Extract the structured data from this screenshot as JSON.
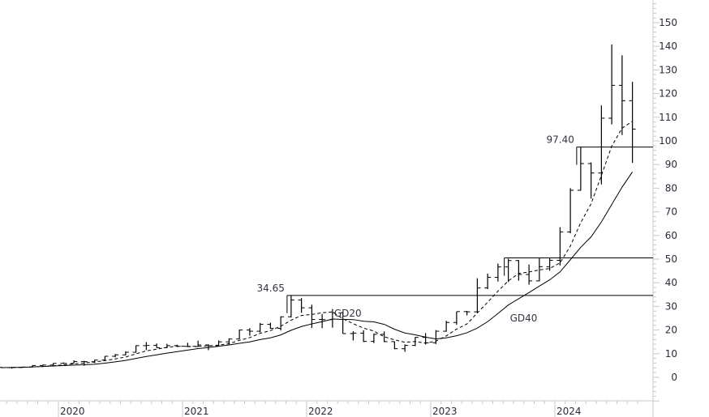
{
  "chart_data": {
    "type": "ohlc",
    "title": "",
    "xlabel": "",
    "ylabel": "",
    "ylim": [
      -10,
      155
    ],
    "grid": false,
    "x_ticks": [
      "2020",
      "2021",
      "2022",
      "2023",
      "2024"
    ],
    "y_ticks": [
      0,
      10,
      20,
      30,
      40,
      50,
      60,
      70,
      80,
      90,
      100,
      110,
      120,
      130,
      140,
      150
    ],
    "y_tick_labels": [
      "0",
      "10",
      "20",
      "30",
      "40",
      "50",
      "60",
      "70",
      "80",
      "90",
      "100",
      "110",
      "120",
      "130",
      "140",
      "150"
    ],
    "bars_columns": [
      "month",
      "open",
      "high",
      "low",
      "close"
    ],
    "bars": [
      [
        "2019-07",
        4.2,
        4.4,
        3.9,
        4.1
      ],
      [
        "2019-08",
        4.1,
        4.3,
        3.7,
        4.2
      ],
      [
        "2019-09",
        4.2,
        4.5,
        4.0,
        4.35
      ],
      [
        "2019-10",
        4.35,
        5.1,
        4.3,
        5.0
      ],
      [
        "2019-11",
        5.0,
        5.4,
        4.9,
        5.2
      ],
      [
        "2019-12",
        5.2,
        6.0,
        5.1,
        5.9
      ],
      [
        "2020-01",
        5.9,
        6.3,
        5.7,
        5.9
      ],
      [
        "2020-02",
        5.9,
        7.2,
        5.9,
        6.7
      ],
      [
        "2020-03",
        6.7,
        7.0,
        4.9,
        6.6
      ],
      [
        "2020-04",
        6.6,
        7.4,
        6.0,
        7.3
      ],
      [
        "2020-05",
        7.3,
        9.0,
        7.0,
        8.9
      ],
      [
        "2020-06",
        8.9,
        9.9,
        8.5,
        9.5
      ],
      [
        "2020-07",
        9.5,
        11.0,
        9.3,
        10.6
      ],
      [
        "2020-08",
        10.6,
        13.5,
        10.4,
        13.4
      ],
      [
        "2020-09",
        13.4,
        14.9,
        11.5,
        13.5
      ],
      [
        "2020-10",
        13.5,
        14.3,
        12.5,
        12.5
      ],
      [
        "2020-11",
        12.5,
        14.2,
        12.4,
        13.4
      ],
      [
        "2020-12",
        13.4,
        13.8,
        12.8,
        13.1
      ],
      [
        "2021-01",
        13.1,
        14.6,
        12.8,
        13.0
      ],
      [
        "2021-02",
        13.0,
        15.5,
        12.9,
        13.7
      ],
      [
        "2021-03",
        13.7,
        14.0,
        11.5,
        13.3
      ],
      [
        "2021-04",
        13.3,
        15.6,
        13.2,
        15.0
      ],
      [
        "2021-05",
        15.0,
        16.5,
        13.9,
        16.2
      ],
      [
        "2021-06",
        16.2,
        20.2,
        16.1,
        20.0
      ],
      [
        "2021-07",
        20.0,
        20.8,
        17.6,
        19.5
      ],
      [
        "2021-08",
        19.5,
        23.0,
        19.0,
        22.4
      ],
      [
        "2021-09",
        22.4,
        23.1,
        20.5,
        20.7
      ],
      [
        "2021-10",
        20.7,
        25.8,
        19.8,
        25.6
      ],
      [
        "2021-11",
        25.6,
        34.65,
        25.3,
        32.7
      ],
      [
        "2021-12",
        32.7,
        33.5,
        27.3,
        29.4
      ],
      [
        "2022-01",
        29.4,
        30.7,
        20.9,
        24.5
      ],
      [
        "2022-02",
        24.5,
        26.8,
        20.8,
        24.4
      ],
      [
        "2022-03",
        24.4,
        28.9,
        21.0,
        27.3
      ],
      [
        "2022-04",
        27.3,
        27.8,
        18.5,
        18.5
      ],
      [
        "2022-05",
        18.5,
        19.5,
        15.6,
        18.7
      ],
      [
        "2022-06",
        18.7,
        19.9,
        14.9,
        15.2
      ],
      [
        "2022-07",
        15.2,
        18.5,
        14.5,
        18.2
      ],
      [
        "2022-08",
        18.2,
        19.4,
        14.9,
        15.1
      ],
      [
        "2022-09",
        15.1,
        15.2,
        11.9,
        12.1
      ],
      [
        "2022-10",
        12.1,
        13.9,
        10.8,
        13.5
      ],
      [
        "2022-11",
        13.5,
        17.0,
        13.2,
        16.9
      ],
      [
        "2022-12",
        16.9,
        18.7,
        13.9,
        14.6
      ],
      [
        "2023-01",
        14.6,
        20.0,
        14.1,
        19.5
      ],
      [
        "2023-02",
        19.5,
        23.9,
        19.3,
        23.2
      ],
      [
        "2023-03",
        23.2,
        27.8,
        22.2,
        27.8
      ],
      [
        "2023-04",
        27.8,
        28.1,
        26.2,
        27.7
      ],
      [
        "2023-05",
        27.7,
        41.9,
        27.2,
        37.8
      ],
      [
        "2023-06",
        37.8,
        43.9,
        37.3,
        42.3
      ],
      [
        "2023-07",
        42.3,
        48.1,
        40.5,
        46.7
      ],
      [
        "2023-08",
        46.7,
        50.2,
        40.3,
        49.4
      ],
      [
        "2023-09",
        49.4,
        49.6,
        40.9,
        43.5
      ],
      [
        "2023-10",
        43.5,
        47.7,
        39.2,
        40.8
      ],
      [
        "2023-11",
        40.8,
        50.5,
        40.6,
        46.8
      ],
      [
        "2023-12",
        46.8,
        50.4,
        45.1,
        49.5
      ],
      [
        "2024-01",
        49.5,
        63.5,
        47.3,
        61.5
      ],
      [
        "2024-02",
        61.5,
        80.0,
        60.9,
        79.1
      ],
      [
        "2024-03",
        79.1,
        97.4,
        79.0,
        90.4
      ],
      [
        "2024-04",
        90.4,
        90.9,
        75.6,
        86.4
      ],
      [
        "2024-05",
        86.4,
        115.0,
        81.6,
        109.6
      ],
      [
        "2024-06",
        109.6,
        140.8,
        107.0,
        123.5
      ],
      [
        "2024-07",
        123.5,
        136.2,
        102.5,
        117.0
      ],
      [
        "2024-08",
        117.0,
        125.0,
        90.7,
        105.0
      ]
    ],
    "moving_averages": [
      {
        "name": "GD20",
        "style": "dashed",
        "label_month": "2022-03",
        "label_value": 27
      },
      {
        "name": "GD40",
        "style": "solid",
        "label_month": "2023-08",
        "label_value": 25
      }
    ],
    "horizontal_levels": [
      {
        "label": "34.65",
        "value": 34.65,
        "from": "2021-11"
      },
      {
        "value": 50.5,
        "from": "2023-08"
      },
      {
        "label": "97.40",
        "value": 97.4,
        "from": "2024-03"
      }
    ],
    "colors": {
      "bars": "#000000",
      "lines": "#000000",
      "axis": "#c8c8c8",
      "text": "#2b2b3a"
    }
  }
}
